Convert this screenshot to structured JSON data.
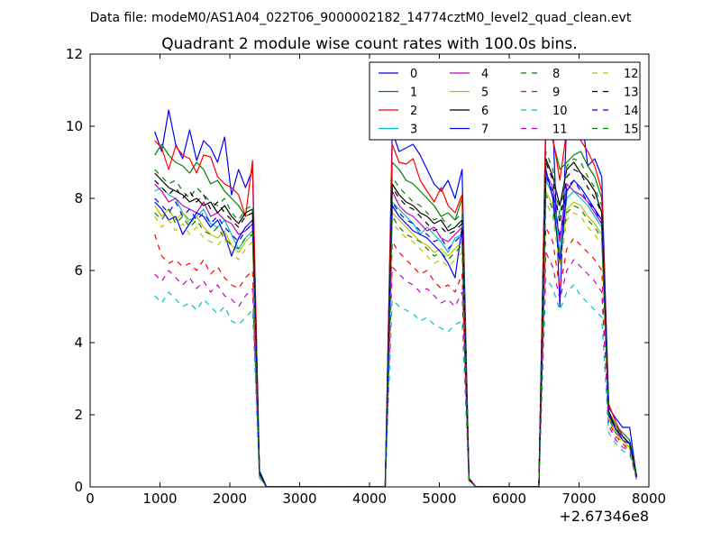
{
  "figure": {
    "suptitle": "Data file: modeM0/AS1A04_022T06_9000002182_14774cztM0_level2_quad_clean.evt",
    "title": "Quadrant 2 module wise count rates with 100.0s bins."
  },
  "chart_data": {
    "type": "line",
    "title": "Quadrant 2 module wise count rates with 100.0s bins.",
    "xlabel": "",
    "ylabel": "",
    "xlim": [
      0,
      8000
    ],
    "ylim": [
      0,
      12
    ],
    "x_offset_label": "+2.67346e8",
    "xticks": [
      0,
      1000,
      2000,
      3000,
      4000,
      5000,
      6000,
      7000,
      8000
    ],
    "yticks": [
      0,
      2,
      4,
      6,
      8,
      10,
      12
    ],
    "xtick_labels": [
      "0",
      "1000",
      "2000",
      "3000",
      "4000",
      "5000",
      "6000",
      "7000",
      "8000"
    ],
    "ytick_labels": [
      "0",
      "2",
      "4",
      "6",
      "8",
      "10",
      "12"
    ],
    "legend_position": "top-right",
    "legend_columns": 4,
    "x": [
      925,
      1025,
      1125,
      1225,
      1325,
      1425,
      1525,
      1625,
      1725,
      1825,
      1925,
      2025,
      2125,
      2225,
      2325,
      2425,
      2525,
      4225,
      4325,
      4425,
      4525,
      4625,
      4725,
      4825,
      4925,
      5025,
      5125,
      5225,
      5325,
      5425,
      5525,
      6425,
      6525,
      6625,
      6725,
      6825,
      6925,
      7025,
      7125,
      7225,
      7325,
      7425,
      7525,
      7625,
      7725,
      7825
    ],
    "series": [
      {
        "name": "0",
        "color": "#0000ff",
        "dash": "solid",
        "values": [
          9.85,
          9.3,
          10.45,
          9.5,
          9.1,
          9.9,
          9.05,
          9.6,
          9.4,
          9.0,
          9.7,
          8.1,
          8.8,
          8.3,
          8.8,
          0.45,
          0,
          0,
          9.85,
          9.3,
          9.4,
          9.5,
          9.2,
          8.8,
          8.4,
          8.2,
          8.5,
          8.0,
          8.8,
          0.2,
          0,
          0,
          10.4,
          10.1,
          5.0,
          10.2,
          10.1,
          10.5,
          8.9,
          9.1,
          8.6,
          2.2,
          1.9,
          1.65,
          1.65,
          0.25
        ]
      },
      {
        "name": "1",
        "color": "#008000",
        "dash": "solid",
        "values": [
          9.2,
          9.5,
          9.2,
          9.0,
          8.9,
          8.7,
          9.0,
          8.8,
          8.4,
          8.5,
          8.2,
          8.0,
          7.8,
          7.5,
          7.6,
          0.4,
          0,
          0,
          9.0,
          8.8,
          8.5,
          8.4,
          8.2,
          8.0,
          7.8,
          7.5,
          7.6,
          7.4,
          8.0,
          0.2,
          0,
          0,
          9.9,
          9.6,
          8.8,
          9.0,
          9.2,
          9.3,
          8.9,
          8.6,
          8.0,
          2.1,
          1.7,
          1.5,
          1.3,
          0.3
        ]
      },
      {
        "name": "2",
        "color": "#ff0000",
        "dash": "solid",
        "values": [
          9.6,
          9.4,
          8.8,
          9.45,
          9.2,
          9.1,
          8.7,
          9.2,
          9.15,
          8.6,
          8.4,
          8.3,
          8.1,
          7.5,
          9.05,
          0.4,
          0,
          0,
          9.5,
          9.0,
          8.95,
          9.1,
          8.5,
          8.2,
          7.9,
          8.3,
          7.8,
          7.6,
          8.1,
          0.25,
          0,
          0,
          10.3,
          9.7,
          8.5,
          9.9,
          9.8,
          9.6,
          9.3,
          8.9,
          8.2,
          2.3,
          1.8,
          1.4,
          1.2,
          0.3
        ]
      },
      {
        "name": "3",
        "color": "#00bfbf",
        "dash": "solid",
        "values": [
          8.2,
          8.3,
          8.1,
          8.0,
          7.6,
          7.4,
          7.5,
          7.7,
          7.3,
          7.2,
          7.4,
          7.0,
          6.6,
          6.9,
          7.1,
          0.35,
          0,
          0,
          7.9,
          7.7,
          7.5,
          7.3,
          7.0,
          7.2,
          7.0,
          6.8,
          6.5,
          6.9,
          7.0,
          0.2,
          0,
          0,
          8.5,
          8.1,
          6.5,
          8.0,
          8.2,
          8.0,
          7.8,
          7.5,
          7.2,
          2.0,
          1.6,
          1.4,
          1.2,
          0.25
        ]
      },
      {
        "name": "4",
        "color": "#bf00bf",
        "dash": "solid",
        "values": [
          8.4,
          8.2,
          7.9,
          8.0,
          7.8,
          7.7,
          7.6,
          7.9,
          7.5,
          7.6,
          7.4,
          7.3,
          7.0,
          7.1,
          7.3,
          0.35,
          0,
          0,
          8.2,
          7.8,
          7.6,
          7.5,
          7.3,
          7.1,
          7.2,
          6.9,
          6.8,
          7.0,
          7.2,
          0.2,
          0,
          0,
          8.7,
          8.3,
          6.8,
          8.4,
          8.2,
          8.1,
          7.9,
          7.6,
          7.3,
          2.0,
          1.6,
          1.3,
          1.2,
          0.25
        ]
      },
      {
        "name": "5",
        "color": "#bfbf00",
        "dash": "solid",
        "values": [
          7.8,
          7.5,
          7.7,
          7.4,
          7.6,
          7.3,
          7.5,
          7.2,
          7.0,
          6.9,
          7.1,
          6.7,
          6.5,
          6.8,
          7.0,
          0.3,
          0,
          0,
          7.6,
          7.4,
          7.2,
          7.0,
          6.8,
          6.7,
          6.5,
          6.6,
          6.4,
          6.6,
          6.8,
          0.2,
          0,
          0,
          8.2,
          7.8,
          6.4,
          7.7,
          7.9,
          7.8,
          7.5,
          7.3,
          7.0,
          1.9,
          1.5,
          1.3,
          1.1,
          0.25
        ]
      },
      {
        "name": "6",
        "color": "#000000",
        "dash": "solid",
        "values": [
          8.7,
          8.5,
          8.3,
          8.2,
          8.1,
          7.9,
          8.0,
          7.8,
          7.9,
          7.6,
          7.8,
          7.5,
          7.3,
          7.6,
          7.7,
          0.4,
          0,
          0,
          8.4,
          8.1,
          7.9,
          7.8,
          7.6,
          7.5,
          7.3,
          7.4,
          7.1,
          7.2,
          7.4,
          0.2,
          0,
          0,
          9.1,
          8.6,
          7.8,
          8.8,
          9.0,
          8.7,
          8.5,
          8.2,
          7.6,
          2.1,
          1.6,
          1.4,
          1.2,
          0.3
        ]
      },
      {
        "name": "7",
        "color": "#0000ff",
        "dash": "solid",
        "values": [
          7.9,
          7.7,
          7.4,
          7.5,
          7.0,
          7.3,
          7.6,
          7.5,
          7.2,
          7.4,
          7.0,
          6.4,
          6.9,
          7.2,
          7.4,
          0.35,
          0,
          0,
          7.8,
          7.5,
          7.3,
          7.1,
          7.0,
          6.9,
          6.7,
          6.5,
          6.2,
          5.8,
          7.2,
          0.2,
          0,
          0,
          8.8,
          8.0,
          6.2,
          8.2,
          8.5,
          8.3,
          8.0,
          7.7,
          7.4,
          2.0,
          1.6,
          1.4,
          1.2,
          0.25
        ]
      },
      {
        "name": "8",
        "color": "#008000",
        "dash": "dashed",
        "values": [
          8.8,
          8.6,
          8.4,
          8.5,
          8.2,
          8.0,
          8.3,
          8.1,
          7.9,
          7.8,
          8.0,
          7.6,
          7.4,
          7.7,
          7.8,
          0.4,
          0,
          0,
          8.6,
          8.3,
          8.1,
          7.9,
          7.8,
          7.6,
          7.4,
          7.5,
          7.2,
          7.4,
          7.6,
          0.2,
          0,
          0,
          9.3,
          8.8,
          7.5,
          8.9,
          9.1,
          9.0,
          8.6,
          8.3,
          7.8,
          2.1,
          1.7,
          1.4,
          1.2,
          0.3
        ]
      },
      {
        "name": "9",
        "color": "#ff0000",
        "dash": "dashed",
        "values": [
          7.0,
          6.4,
          6.2,
          6.3,
          6.1,
          6.2,
          6.0,
          6.3,
          5.9,
          6.1,
          5.8,
          5.6,
          5.5,
          5.8,
          6.0,
          0.3,
          0,
          0,
          6.8,
          6.5,
          6.3,
          6.1,
          5.9,
          6.0,
          5.7,
          5.5,
          5.6,
          5.4,
          5.9,
          0.2,
          0,
          0,
          7.2,
          6.8,
          5.5,
          6.6,
          6.9,
          6.7,
          6.5,
          6.3,
          6.0,
          1.8,
          1.4,
          1.2,
          1.0,
          0.25
        ]
      },
      {
        "name": "10",
        "color": "#00bfbf",
        "dash": "dashed",
        "values": [
          5.3,
          5.1,
          5.4,
          5.2,
          5.0,
          5.1,
          4.9,
          5.2,
          5.0,
          4.8,
          5.0,
          4.6,
          4.5,
          4.7,
          4.9,
          0.25,
          0,
          0,
          5.2,
          5.0,
          4.9,
          4.8,
          4.6,
          4.7,
          4.5,
          4.4,
          4.3,
          4.5,
          4.6,
          0.15,
          0,
          0,
          5.8,
          5.5,
          4.9,
          5.4,
          5.6,
          5.3,
          5.1,
          4.9,
          4.7,
          1.5,
          1.2,
          1.0,
          0.9,
          0.2
        ]
      },
      {
        "name": "11",
        "color": "#bf00bf",
        "dash": "dashed",
        "values": [
          5.9,
          5.7,
          6.0,
          5.8,
          5.6,
          5.8,
          5.5,
          5.7,
          5.4,
          5.6,
          5.3,
          5.2,
          5.0,
          5.3,
          5.5,
          0.3,
          0,
          0,
          6.1,
          5.9,
          5.7,
          5.6,
          5.4,
          5.5,
          5.3,
          5.1,
          5.2,
          5.0,
          5.4,
          0.2,
          0,
          0,
          6.5,
          6.1,
          5.2,
          6.0,
          6.3,
          6.1,
          5.9,
          5.7,
          5.4,
          1.7,
          1.3,
          1.1,
          1.0,
          0.2
        ]
      },
      {
        "name": "12",
        "color": "#bfbf00",
        "dash": "dashed",
        "values": [
          7.5,
          7.2,
          7.4,
          7.1,
          7.3,
          7.0,
          7.2,
          6.9,
          6.8,
          6.7,
          6.9,
          6.5,
          6.3,
          6.6,
          6.8,
          0.3,
          0,
          0,
          7.3,
          7.1,
          6.9,
          6.8,
          6.6,
          6.4,
          6.2,
          6.3,
          6.1,
          6.3,
          6.5,
          0.2,
          0,
          0,
          7.9,
          7.5,
          6.1,
          7.4,
          7.6,
          7.5,
          7.2,
          7.0,
          6.7,
          1.9,
          1.5,
          1.2,
          1.1,
          0.25
        ]
      },
      {
        "name": "13",
        "color": "#000000",
        "dash": "dashed",
        "values": [
          8.5,
          8.3,
          8.1,
          8.3,
          8.0,
          8.2,
          7.9,
          8.1,
          7.7,
          7.9,
          7.6,
          7.4,
          7.2,
          7.5,
          7.6,
          0.4,
          0,
          0,
          8.3,
          8.0,
          7.8,
          7.7,
          7.5,
          7.3,
          7.1,
          7.2,
          7.0,
          7.1,
          7.3,
          0.2,
          0,
          0,
          9.0,
          8.5,
          7.3,
          8.6,
          8.8,
          8.7,
          8.3,
          8.0,
          7.6,
          2.0,
          1.6,
          1.4,
          1.2,
          0.3
        ]
      },
      {
        "name": "14",
        "color": "#0000ff",
        "dash": "dashed",
        "values": [
          8.0,
          7.8,
          7.6,
          7.9,
          7.5,
          7.7,
          7.4,
          7.6,
          7.3,
          7.5,
          7.2,
          7.0,
          6.8,
          7.1,
          7.3,
          0.35,
          0,
          0,
          7.9,
          7.6,
          7.4,
          7.3,
          7.1,
          7.0,
          6.8,
          6.9,
          6.6,
          6.8,
          7.0,
          0.2,
          0,
          0,
          8.6,
          8.2,
          6.9,
          8.3,
          8.5,
          8.2,
          7.9,
          7.7,
          7.3,
          2.0,
          1.6,
          1.3,
          1.2,
          0.25
        ]
      },
      {
        "name": "15",
        "color": "#008000",
        "dash": "dashed",
        "values": [
          7.6,
          7.4,
          7.7,
          7.3,
          7.5,
          7.2,
          7.4,
          7.1,
          7.0,
          7.2,
          6.9,
          6.7,
          6.6,
          6.9,
          7.0,
          0.3,
          0,
          0,
          7.5,
          7.2,
          7.0,
          6.9,
          6.8,
          6.6,
          6.4,
          6.5,
          6.3,
          6.5,
          6.7,
          0.2,
          0,
          0,
          8.1,
          7.7,
          6.4,
          7.6,
          7.8,
          7.7,
          7.4,
          7.2,
          6.9,
          1.9,
          1.5,
          1.3,
          1.1,
          0.25
        ]
      }
    ]
  }
}
